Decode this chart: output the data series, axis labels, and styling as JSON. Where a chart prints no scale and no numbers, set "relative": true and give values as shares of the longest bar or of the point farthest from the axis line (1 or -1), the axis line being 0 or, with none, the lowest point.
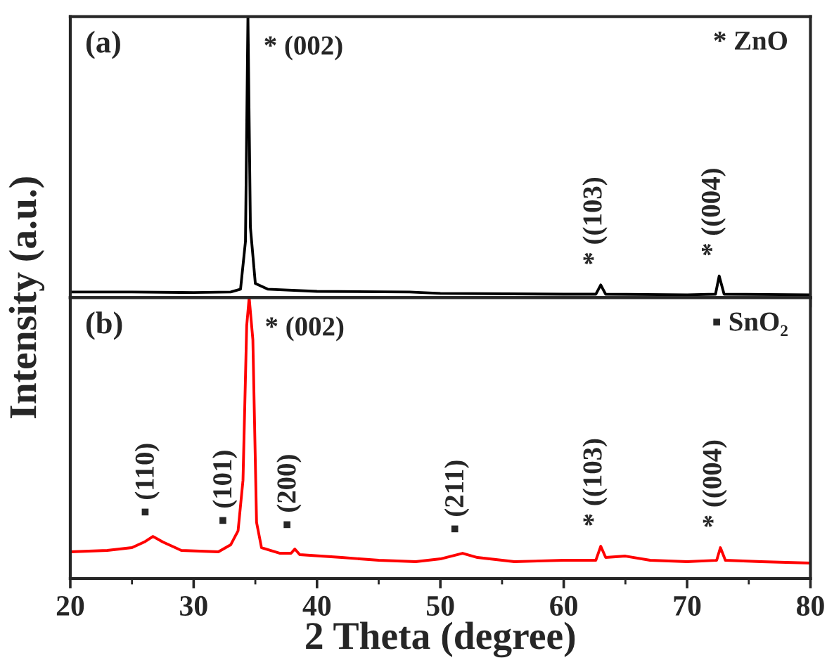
{
  "chart_data": [
    {
      "type": "line",
      "relative": true,
      "tick_labels": false,
      "xlim": [
        20,
        80
      ],
      "xticks": [
        20,
        30,
        40,
        50,
        60,
        70,
        80
      ],
      "series": [
        {
          "color": "#000000",
          "x": [
            20,
            25,
            30,
            33,
            33.8,
            34.2,
            34.4,
            34.6,
            35,
            36,
            40,
            47.5,
            50,
            60,
            62.6,
            63,
            63.4,
            70,
            72.3,
            72.6,
            73,
            80
          ],
          "values": [
            0.02,
            0.02,
            0.018,
            0.02,
            0.03,
            0.2,
            1.0,
            0.25,
            0.05,
            0.03,
            0.022,
            0.02,
            0.015,
            0.012,
            0.012,
            0.045,
            0.012,
            0.01,
            0.012,
            0.077,
            0.012,
            0.01
          ]
        }
      ],
      "annotations": [
        "(a)",
        "* ZnO",
        {
          "text": "* (002)",
          "x": 34.4,
          "y": 1.0
        },
        {
          "text": "* ((103)",
          "x": 63,
          "y": 0.045
        },
        {
          "text": "* ((004)",
          "x": 72.6,
          "y": 0.077
        }
      ]
    },
    {
      "type": "line",
      "relative": true,
      "tick_labels": "x",
      "xlim": [
        20,
        80
      ],
      "xticks": [
        20,
        30,
        40,
        50,
        60,
        70,
        80
      ],
      "xlabel": "2 Theta (degree)",
      "ylabel": "Intensity (a.u.)",
      "series": [
        {
          "color": "#ff0000",
          "x": [
            20,
            23,
            25,
            26,
            26.7,
            27.5,
            29,
            32,
            33,
            33.6,
            34,
            34.3,
            34.5,
            34.8,
            35.1,
            35.5,
            37,
            37.9,
            38.2,
            38.6,
            42,
            45,
            48,
            50,
            51.8,
            53,
            56,
            60,
            62.6,
            63,
            63.4,
            65,
            67,
            70,
            72.4,
            72.7,
            73.1,
            76,
            80
          ],
          "values": [
            0.095,
            0.1,
            0.11,
            0.13,
            0.15,
            0.13,
            0.1,
            0.095,
            0.12,
            0.17,
            0.35,
            0.9,
            1.0,
            0.85,
            0.2,
            0.11,
            0.09,
            0.09,
            0.105,
            0.085,
            0.075,
            0.065,
            0.06,
            0.07,
            0.09,
            0.075,
            0.06,
            0.065,
            0.065,
            0.115,
            0.075,
            0.08,
            0.065,
            0.06,
            0.065,
            0.11,
            0.065,
            0.06,
            0.055
          ]
        }
      ],
      "annotations": [
        "(b)",
        "▪ SnO₂",
        {
          "text": "* (002)",
          "x": 34.5,
          "y": 1.0
        },
        {
          "text": "▪ (110)",
          "x": 26.7,
          "y": 0.15
        },
        {
          "text": "▪ (101)",
          "x": 33,
          "y": 0.12
        },
        {
          "text": "▪ (200)",
          "x": 38.2,
          "y": 0.105
        },
        {
          "text": "▪ (211)",
          "x": 51.8,
          "y": 0.09
        },
        {
          "text": "* ((103)",
          "x": 63,
          "y": 0.115
        },
        {
          "text": "* ((004)",
          "x": 72.7,
          "y": 0.11
        }
      ]
    }
  ]
}
